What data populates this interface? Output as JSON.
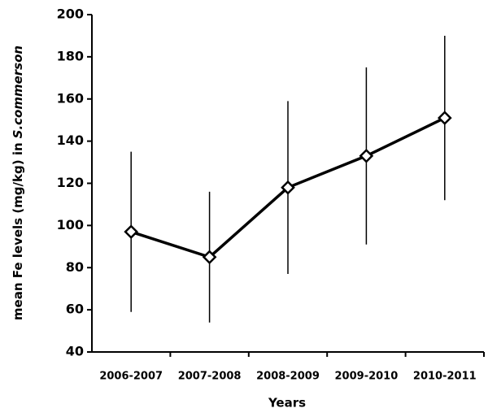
{
  "chart_data": {
    "type": "line",
    "xlabel": "Years",
    "ylabel": "mean Fe levels (mg/kg) in",
    "ylabel_species": "S.commerson",
    "categories": [
      "2006-2007",
      "2007-2008",
      "2008-2009",
      "2009-2010",
      "2010-2011"
    ],
    "values": [
      97,
      85,
      118,
      133,
      151
    ],
    "errors": [
      38,
      31,
      41,
      42,
      39
    ],
    "color": "#000000",
    "ylim": [
      40,
      200
    ],
    "yticks": [
      40,
      60,
      80,
      100,
      120,
      140,
      160,
      180,
      200
    ],
    "grid": false
  }
}
